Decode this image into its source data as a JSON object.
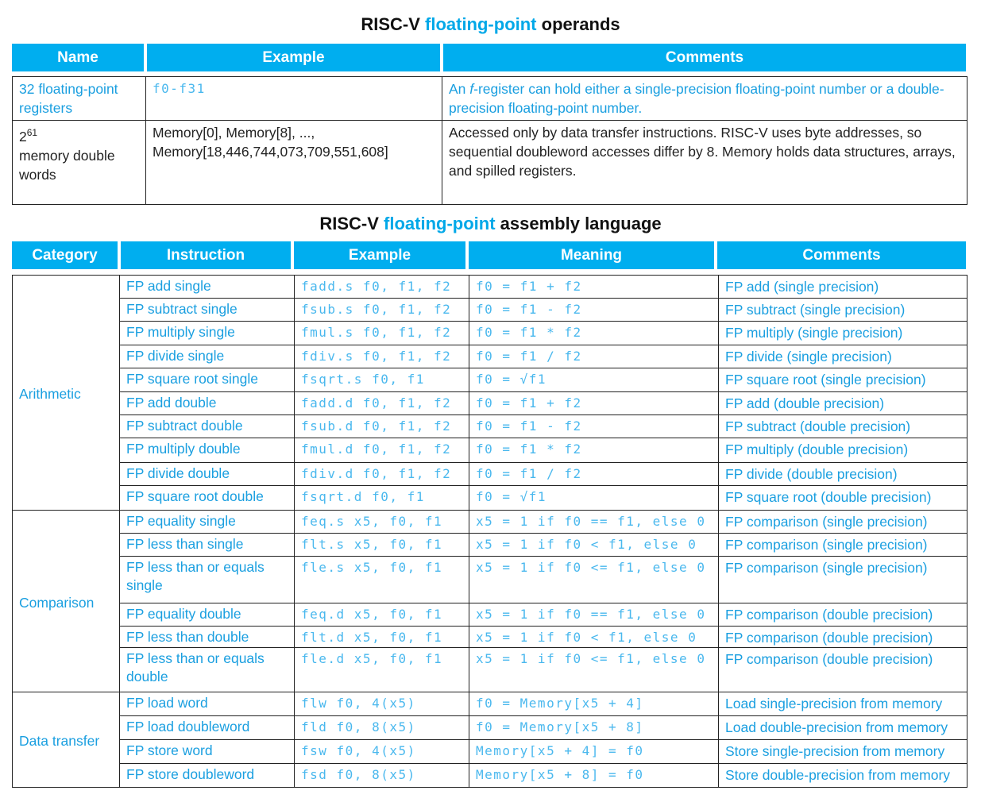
{
  "operands": {
    "title_pre": "RISC-V",
    "title_hl": "floating-point",
    "title_post": "operands",
    "headers": [
      "Name",
      "Example",
      "Comments"
    ],
    "rows": [
      {
        "name": "32 floating-point registers",
        "example": "f0-f31",
        "comment_pre": "An ",
        "comment_italic": "f",
        "comment_post": "-register can hold either a single-precision floating-point number or a double-precision floating-point number."
      },
      {
        "name_base": "2",
        "name_exp": "61",
        "name_rest": "memory double words",
        "example": "Memory[0], Memory[8], ..., Memory[18,446,744,073,709,551,608]",
        "comment": "Accessed only by data transfer instructions. RISC-V uses byte addresses, so sequential doubleword accesses differ by 8. Memory holds data structures, arrays, and spilled registers."
      }
    ]
  },
  "assembly": {
    "title_pre": "RISC-V",
    "title_hl": "floating-point",
    "title_post": "assembly language",
    "headers": [
      "Category",
      "Instruction",
      "Example",
      "Meaning",
      "Comments"
    ],
    "groups": [
      {
        "category": "Arithmetic",
        "rows": [
          {
            "instr": "FP add single",
            "ex": "fadd.s f0, f1, f2",
            "mean": "f0 = f1 + f2",
            "comm": "FP add (single precision)"
          },
          {
            "instr": "FP subtract single",
            "ex": "fsub.s f0, f1, f2",
            "mean": "f0 = f1 - f2",
            "comm": "FP subtract (single precision)"
          },
          {
            "instr": "FP multiply single",
            "ex": "fmul.s f0, f1, f2",
            "mean": "f0 = f1 * f2",
            "comm": "FP multiply (single precision)"
          },
          {
            "instr": "FP divide single",
            "ex": "fdiv.s f0, f1, f2",
            "mean": "f0 = f1 / f2",
            "comm": "FP divide (single precision)"
          },
          {
            "instr": "FP square root single",
            "ex": "fsqrt.s f0, f1",
            "mean": "f0 = √f1",
            "comm": "FP square root (single precision)"
          },
          {
            "instr": "FP add double",
            "ex": "fadd.d f0, f1, f2",
            "mean": "f0 = f1 + f2",
            "comm": "FP add (double precision)"
          },
          {
            "instr": "FP subtract double",
            "ex": "fsub.d f0, f1, f2",
            "mean": "f0 = f1 - f2",
            "comm": "FP subtract (double precision)"
          },
          {
            "instr": "FP multiply double",
            "ex": "fmul.d f0, f1, f2",
            "mean": "f0 = f1 * f2",
            "comm": "FP multiply (double precision)"
          },
          {
            "instr": "FP divide double",
            "ex": "fdiv.d f0, f1, f2",
            "mean": "f0 = f1 / f2",
            "comm": "FP divide (double precision)"
          },
          {
            "instr": "FP square root double",
            "ex": "fsqrt.d f0, f1",
            "mean": "f0 = √f1",
            "comm": "FP square root (double precision)"
          }
        ]
      },
      {
        "category": "Comparison",
        "rows": [
          {
            "instr": "FP equality single",
            "ex": "feq.s x5, f0, f1",
            "mean": "x5 = 1 if f0 == f1, else 0",
            "comm": "FP comparison (single precision)"
          },
          {
            "instr": "FP less than single",
            "ex": "flt.s x5, f0, f1",
            "mean": "x5 = 1 if f0 < f1, else 0",
            "comm": "FP comparison (single precision)"
          },
          {
            "instr": "FP less than or equals single",
            "ex": "fle.s x5, f0, f1",
            "mean": "x5 = 1 if f0 <= f1, else 0",
            "comm": "FP comparison (single precision)"
          },
          {
            "instr": "FP equality double",
            "ex": "feq.d x5, f0, f1",
            "mean": "x5 = 1 if f0 == f1, else 0",
            "comm": "FP comparison (double precision)"
          },
          {
            "instr": "FP less than double",
            "ex": "flt.d x5, f0, f1",
            "mean": "x5 = 1 if f0 < f1, else 0",
            "comm": "FP comparison (double precision)"
          },
          {
            "instr": "FP less than or equals double",
            "ex": "fle.d x5, f0, f1",
            "mean": "x5 = 1 if f0 <= f1, else 0",
            "comm": "FP comparison (double precision)"
          }
        ]
      },
      {
        "category": "Data transfer",
        "rows": [
          {
            "instr": "FP load word",
            "ex": "flw f0, 4(x5)",
            "mean": "f0 = Memory[x5 + 4]",
            "comm": "Load single-precision from memory"
          },
          {
            "instr": "FP load doubleword",
            "ex": "fld f0, 8(x5)",
            "mean": "f0 = Memory[x5 + 8]",
            "comm": "Load double-precision from memory"
          },
          {
            "instr": "FP store word",
            "ex": "fsw f0, 4(x5)",
            "mean": "Memory[x5 + 4] = f0",
            "comm": "Store single-precision from memory"
          },
          {
            "instr": "FP store doubleword",
            "ex": "fsd f0, 8(x5)",
            "mean": "Memory[x5 + 8] = f0",
            "comm": "Store double-precision from memory"
          }
        ]
      }
    ]
  }
}
